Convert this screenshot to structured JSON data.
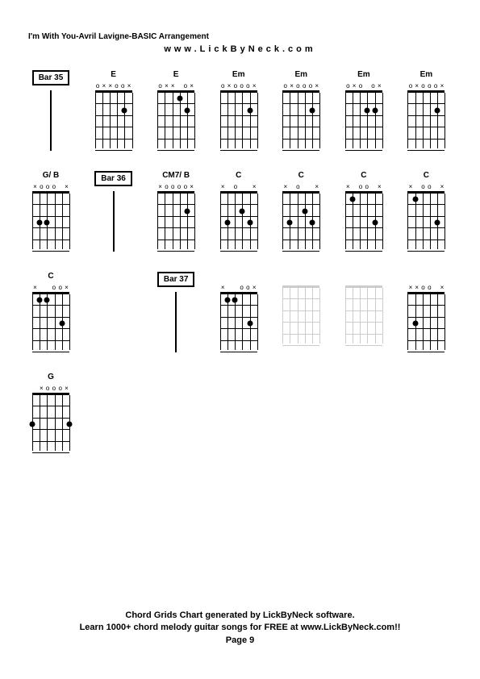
{
  "title": "I'm With You-Avril Lavigne-BASIC Arrangement",
  "subtitle": "www.LickByNeck.com",
  "footer_line1": "Chord Grids Chart generated by LickByNeck software.",
  "footer_line2": "Learn 1000+ chord melody guitar songs for FREE at www.LickByNeck.com!!",
  "footer_line3": "Page 9",
  "diagram_style": {
    "fret_count": 5,
    "string_count": 6,
    "board_width": 46,
    "board_height": 72,
    "dot_size": 7,
    "string_color": "#000000",
    "string_color_light": "#cccccc",
    "nut_thickness": 3
  },
  "cells": [
    {
      "type": "bar",
      "label": "Bar 35"
    },
    {
      "type": "chord",
      "label": "E",
      "nut": [
        "o",
        "x",
        "x",
        "o",
        "o",
        "x"
      ],
      "dots": [
        [
          4,
          2
        ]
      ]
    },
    {
      "type": "chord",
      "label": "E",
      "nut": [
        "o",
        "x",
        "x",
        "",
        "o",
        "x"
      ],
      "dots": [
        [
          3,
          1
        ],
        [
          4,
          2
        ]
      ]
    },
    {
      "type": "chord",
      "label": "Em",
      "nut": [
        "o",
        "x",
        "o",
        "o",
        "o",
        "x"
      ],
      "dots": [
        [
          4,
          2
        ]
      ]
    },
    {
      "type": "chord",
      "label": "Em",
      "nut": [
        "o",
        "x",
        "o",
        "o",
        "o",
        "x"
      ],
      "dots": [
        [
          4,
          2
        ]
      ]
    },
    {
      "type": "chord",
      "label": "Em",
      "nut": [
        "o",
        "x",
        "o",
        "",
        "o",
        "x"
      ],
      "dots": [
        [
          3,
          2
        ],
        [
          4,
          2
        ]
      ]
    },
    {
      "type": "chord",
      "label": "Em",
      "nut": [
        "o",
        "x",
        "o",
        "o",
        "o",
        "x"
      ],
      "dots": [
        [
          4,
          2
        ]
      ]
    },
    {
      "type": "chord",
      "label": "G/ B",
      "nut": [
        "x",
        "o",
        "o",
        "o",
        "",
        "x"
      ],
      "dots": [
        [
          1,
          3
        ],
        [
          2,
          3
        ]
      ]
    },
    {
      "type": "bar",
      "label": "Bar 36"
    },
    {
      "type": "chord",
      "label": "CM7/ B",
      "nut": [
        "x",
        "o",
        "o",
        "o",
        "o",
        "x"
      ],
      "dots": [
        [
          4,
          2
        ]
      ]
    },
    {
      "type": "chord",
      "label": "C",
      "nut": [
        "x",
        "",
        "o",
        "",
        "",
        "x"
      ],
      "dots": [
        [
          1,
          3
        ],
        [
          3,
          2
        ],
        [
          4,
          3
        ]
      ]
    },
    {
      "type": "chord",
      "label": "C",
      "nut": [
        "x",
        "",
        "o",
        "",
        "",
        "x"
      ],
      "dots": [
        [
          1,
          3
        ],
        [
          3,
          2
        ],
        [
          4,
          3
        ]
      ]
    },
    {
      "type": "chord",
      "label": "C",
      "nut": [
        "x",
        "",
        "o",
        "o",
        "",
        "x"
      ],
      "dots": [
        [
          1,
          1
        ],
        [
          4,
          3
        ]
      ]
    },
    {
      "type": "chord",
      "label": "C",
      "nut": [
        "x",
        "",
        "o",
        "o",
        "",
        "x"
      ],
      "dots": [
        [
          1,
          1
        ],
        [
          4,
          3
        ]
      ]
    },
    {
      "type": "chord",
      "label": "C",
      "nut": [
        "x",
        "",
        "",
        "o",
        "o",
        "x"
      ],
      "dots": [
        [
          1,
          1
        ],
        [
          2,
          1
        ],
        [
          4,
          3
        ]
      ]
    },
    {
      "type": "empty"
    },
    {
      "type": "bar",
      "label": "Bar 37"
    },
    {
      "type": "chord",
      "label": "",
      "nut": [
        "x",
        "",
        "",
        "o",
        "o",
        "x"
      ],
      "dots": [
        [
          1,
          1
        ],
        [
          2,
          1
        ],
        [
          4,
          3
        ]
      ]
    },
    {
      "type": "chord",
      "label": "",
      "light": true,
      "nut": [
        "",
        "",
        "",
        "",
        "",
        ""
      ],
      "dots": []
    },
    {
      "type": "chord",
      "label": "",
      "light": true,
      "nut": [
        "",
        "",
        "",
        "",
        "",
        ""
      ],
      "dots": []
    },
    {
      "type": "chord",
      "label": "",
      "nut": [
        "x",
        "x",
        "o",
        "o",
        "",
        "x"
      ],
      "dots": [
        [
          1,
          3
        ]
      ]
    },
    {
      "type": "chord",
      "label": "G",
      "nut": [
        "",
        "x",
        "o",
        "o",
        "o",
        "x"
      ],
      "dots": [
        [
          0,
          3
        ],
        [
          5,
          3
        ]
      ]
    }
  ]
}
